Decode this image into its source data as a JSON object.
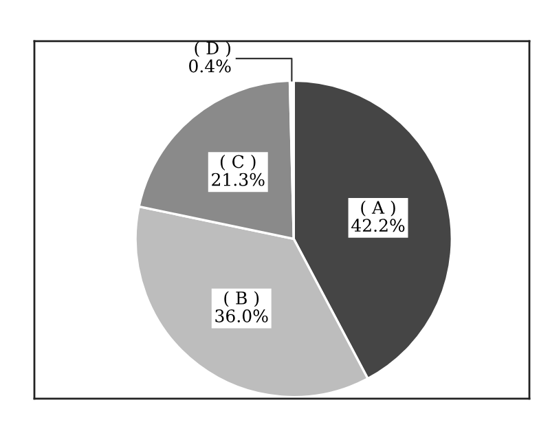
{
  "chart_data": {
    "type": "pie",
    "categories": [
      "( A )",
      "( B )",
      "( C )",
      "( D )"
    ],
    "values": [
      42.2,
      36.0,
      21.3,
      0.4
    ],
    "value_labels": [
      "42.2%",
      "36.0%",
      "21.3%",
      "0.4%"
    ],
    "colors": [
      "#454545",
      "#bdbdbd",
      "#8a8a8a",
      "#ffffff"
    ]
  }
}
